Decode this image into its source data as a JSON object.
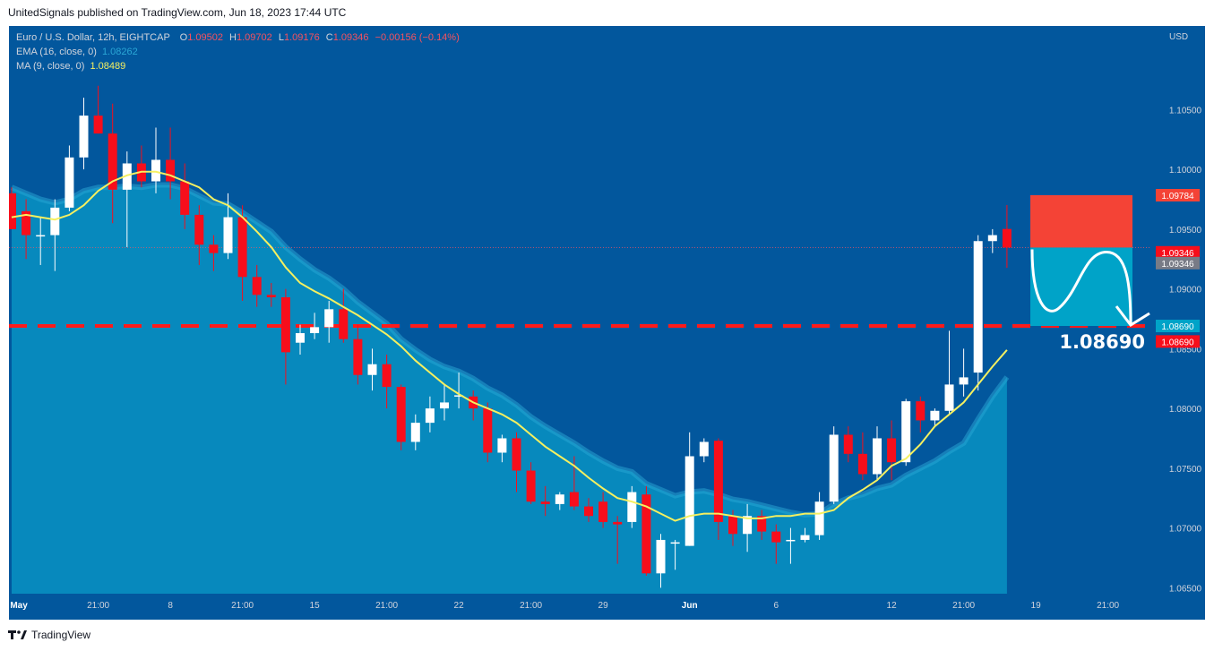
{
  "header": {
    "publisher": "UnitedSignals published on TradingView.com, Jun 18, 2023 17:44 UTC"
  },
  "legend": {
    "symbol": "Euro / U.S. Dollar, 12h, EIGHTCAP",
    "o_label": "O",
    "o": "1.09502",
    "h_label": "H",
    "h": "1.09702",
    "l_label": "L",
    "l": "1.09176",
    "c_label": "C",
    "c": "1.09346",
    "change": "−0.00156 (−0.14%)",
    "ema_label": "EMA (16, close, 0)",
    "ema_value": "1.08262",
    "ma_label": "MA (9, close, 0)",
    "ma_value": "1.08489"
  },
  "footer": {
    "brand": "TradingView"
  },
  "colors": {
    "background": "#02579d",
    "up": "#ffffff",
    "down": "#f70e1b",
    "ema_area": "#0789bd",
    "ema_line": "#2aa7d6",
    "ma_line": "#f5f060",
    "support": "#ff1a1a",
    "stop_zone": "#f44336",
    "target_zone": "#00a3c8"
  },
  "chart_data": {
    "type": "candlestick",
    "currency_label": "USD",
    "ylim": [
      1.0645,
      1.112
    ],
    "y_ticks": [
      "1.10500",
      "1.10000",
      "1.09500",
      "1.09000",
      "1.08500",
      "1.08000",
      "1.07500",
      "1.07000",
      "1.06500"
    ],
    "x_ticks": [
      {
        "label": "May",
        "bar": 0.5
      },
      {
        "label": "21:00",
        "bar": 6
      },
      {
        "label": "8",
        "bar": 11
      },
      {
        "label": "21:00",
        "bar": 16
      },
      {
        "label": "15",
        "bar": 21
      },
      {
        "label": "21:00",
        "bar": 26
      },
      {
        "label": "22",
        "bar": 31
      },
      {
        "label": "21:00",
        "bar": 36
      },
      {
        "label": "29",
        "bar": 41
      },
      {
        "label": "Jun",
        "bar": 47
      },
      {
        "label": "6",
        "bar": 53
      },
      {
        "label": "12",
        "bar": 61
      },
      {
        "label": "21:00",
        "bar": 66
      },
      {
        "label": "19",
        "bar": 71
      },
      {
        "label": "21:00",
        "bar": 76
      }
    ],
    "candles": [
      {
        "o": 1.098,
        "h": 1.0985,
        "l": 1.095,
        "c": 1.095
      },
      {
        "o": 1.0965,
        "h": 1.0975,
        "l": 1.0925,
        "c": 1.0945
      },
      {
        "o": 1.0945,
        "h": 1.096,
        "l": 1.092,
        "c": 1.0945
      },
      {
        "o": 1.0945,
        "h": 1.0975,
        "l": 1.0915,
        "c": 1.0968
      },
      {
        "o": 1.0968,
        "h": 1.102,
        "l": 1.0965,
        "c": 1.101
      },
      {
        "o": 1.101,
        "h": 1.106,
        "l": 1.1,
        "c": 1.1045
      },
      {
        "o": 1.1045,
        "h": 1.107,
        "l": 1.103,
        "c": 1.103
      },
      {
        "o": 1.103,
        "h": 1.1055,
        "l": 1.0955,
        "c": 1.0983
      },
      {
        "o": 1.0983,
        "h": 1.1015,
        "l": 1.0935,
        "c": 1.1005
      },
      {
        "o": 1.1005,
        "h": 1.102,
        "l": 1.0985,
        "c": 1.099
      },
      {
        "o": 1.099,
        "h": 1.1035,
        "l": 1.098,
        "c": 1.1008
      },
      {
        "o": 1.1008,
        "h": 1.1035,
        "l": 1.0975,
        "c": 1.099
      },
      {
        "o": 1.099,
        "h": 1.1005,
        "l": 1.095,
        "c": 1.0962
      },
      {
        "o": 1.0962,
        "h": 1.097,
        "l": 1.092,
        "c": 1.0937
      },
      {
        "o": 1.0937,
        "h": 1.0945,
        "l": 1.0915,
        "c": 1.093
      },
      {
        "o": 1.093,
        "h": 1.098,
        "l": 1.0925,
        "c": 1.096
      },
      {
        "o": 1.096,
        "h": 1.097,
        "l": 1.089,
        "c": 1.091
      },
      {
        "o": 1.091,
        "h": 1.092,
        "l": 1.0885,
        "c": 1.0895
      },
      {
        "o": 1.0895,
        "h": 1.0905,
        "l": 1.0885,
        "c": 1.0893
      },
      {
        "o": 1.0893,
        "h": 1.09,
        "l": 1.082,
        "c": 1.0847
      },
      {
        "o": 1.0855,
        "h": 1.087,
        "l": 1.0845,
        "c": 1.0863
      },
      {
        "o": 1.0863,
        "h": 1.088,
        "l": 1.0858,
        "c": 1.0868
      },
      {
        "o": 1.0868,
        "h": 1.089,
        "l": 1.0855,
        "c": 1.0883
      },
      {
        "o": 1.0883,
        "h": 1.09,
        "l": 1.0855,
        "c": 1.0858
      },
      {
        "o": 1.0858,
        "h": 1.087,
        "l": 1.082,
        "c": 1.0828
      },
      {
        "o": 1.0828,
        "h": 1.085,
        "l": 1.0815,
        "c": 1.0837
      },
      {
        "o": 1.0837,
        "h": 1.0845,
        "l": 1.08,
        "c": 1.0818
      },
      {
        "o": 1.0818,
        "h": 1.082,
        "l": 1.0765,
        "c": 1.0772
      },
      {
        "o": 1.0772,
        "h": 1.0795,
        "l": 1.0765,
        "c": 1.0788
      },
      {
        "o": 1.0788,
        "h": 1.081,
        "l": 1.078,
        "c": 1.08
      },
      {
        "o": 1.08,
        "h": 1.082,
        "l": 1.079,
        "c": 1.0805
      },
      {
        "o": 1.081,
        "h": 1.083,
        "l": 1.08,
        "c": 1.0811
      },
      {
        "o": 1.081,
        "h": 1.0815,
        "l": 1.079,
        "c": 1.08
      },
      {
        "o": 1.08,
        "h": 1.0805,
        "l": 1.0755,
        "c": 1.0763
      },
      {
        "o": 1.0763,
        "h": 1.0778,
        "l": 1.0755,
        "c": 1.0775
      },
      {
        "o": 1.0775,
        "h": 1.078,
        "l": 1.073,
        "c": 1.0748
      },
      {
        "o": 1.0748,
        "h": 1.0755,
        "l": 1.072,
        "c": 1.0722
      },
      {
        "o": 1.0722,
        "h": 1.0735,
        "l": 1.071,
        "c": 1.072
      },
      {
        "o": 1.072,
        "h": 1.073,
        "l": 1.0715,
        "c": 1.0728
      },
      {
        "o": 1.073,
        "h": 1.076,
        "l": 1.0715,
        "c": 1.0718
      },
      {
        "o": 1.0718,
        "h": 1.0725,
        "l": 1.0705,
        "c": 1.071
      },
      {
        "o": 1.0722,
        "h": 1.073,
        "l": 1.07,
        "c": 1.0705
      },
      {
        "o": 1.0705,
        "h": 1.071,
        "l": 1.067,
        "c": 1.0703
      },
      {
        "o": 1.0705,
        "h": 1.0735,
        "l": 1.07,
        "c": 1.073
      },
      {
        "o": 1.0728,
        "h": 1.0735,
        "l": 1.066,
        "c": 1.0662
      },
      {
        "o": 1.0662,
        "h": 1.0695,
        "l": 1.065,
        "c": 1.069
      },
      {
        "o": 1.0688,
        "h": 1.069,
        "l": 1.0665,
        "c": 1.0688
      },
      {
        "o": 1.0685,
        "h": 1.078,
        "l": 1.0685,
        "c": 1.076
      },
      {
        "o": 1.076,
        "h": 1.0775,
        "l": 1.0755,
        "c": 1.0772
      },
      {
        "o": 1.0773,
        "h": 1.0775,
        "l": 1.069,
        "c": 1.0705
      },
      {
        "o": 1.071,
        "h": 1.0715,
        "l": 1.0685,
        "c": 1.0695
      },
      {
        "o": 1.0695,
        "h": 1.072,
        "l": 1.068,
        "c": 1.071
      },
      {
        "o": 1.071,
        "h": 1.0715,
        "l": 1.069,
        "c": 1.0697
      },
      {
        "o": 1.0697,
        "h": 1.0703,
        "l": 1.067,
        "c": 1.0688
      },
      {
        "o": 1.069,
        "h": 1.07,
        "l": 1.067,
        "c": 1.069
      },
      {
        "o": 1.069,
        "h": 1.07,
        "l": 1.0688,
        "c": 1.0694
      },
      {
        "o": 1.0694,
        "h": 1.073,
        "l": 1.069,
        "c": 1.0722
      },
      {
        "o": 1.0722,
        "h": 1.0785,
        "l": 1.072,
        "c": 1.0778
      },
      {
        "o": 1.0778,
        "h": 1.0785,
        "l": 1.0755,
        "c": 1.0762
      },
      {
        "o": 1.0762,
        "h": 1.078,
        "l": 1.074,
        "c": 1.0745
      },
      {
        "o": 1.0745,
        "h": 1.0785,
        "l": 1.074,
        "c": 1.0775
      },
      {
        "o": 1.0775,
        "h": 1.079,
        "l": 1.074,
        "c": 1.0755
      },
      {
        "o": 1.0755,
        "h": 1.0808,
        "l": 1.0752,
        "c": 1.0806
      },
      {
        "o": 1.0806,
        "h": 1.081,
        "l": 1.078,
        "c": 1.079
      },
      {
        "o": 1.079,
        "h": 1.08,
        "l": 1.0785,
        "c": 1.0798
      },
      {
        "o": 1.0798,
        "h": 1.0865,
        "l": 1.0795,
        "c": 1.082
      },
      {
        "o": 1.082,
        "h": 1.085,
        "l": 1.081,
        "c": 1.0826
      },
      {
        "o": 1.083,
        "h": 1.0945,
        "l": 1.0815,
        "c": 1.094
      },
      {
        "o": 1.094,
        "h": 1.095,
        "l": 1.093,
        "c": 1.0945
      },
      {
        "o": 1.09502,
        "h": 1.09702,
        "l": 1.09176,
        "c": 1.09346
      }
    ],
    "ema": [
      1.0985,
      1.098,
      1.0975,
      1.0972,
      1.0975,
      1.0982,
      1.0985,
      1.0985,
      1.0986,
      1.0985,
      1.0987,
      1.0987,
      1.0984,
      1.0978,
      1.0972,
      1.0971,
      1.0964,
      1.0956,
      1.0948,
      1.0935,
      1.0925,
      1.0916,
      1.0909,
      1.09,
      1.0889,
      1.088,
      1.0871,
      1.0858,
      1.0849,
      1.0841,
      1.0835,
      1.0831,
      1.0825,
      1.0817,
      1.0811,
      1.0803,
      1.0793,
      1.0785,
      1.0778,
      1.0771,
      1.0763,
      1.0756,
      1.075,
      1.0747,
      1.0737,
      1.0732,
      1.0727,
      1.073,
      1.0731,
      1.0728,
      1.0724,
      1.0722,
      1.0719,
      1.0716,
      1.0713,
      1.0711,
      1.0712,
      1.072,
      1.0725,
      1.0728,
      1.0733,
      1.0736,
      1.0744,
      1.075,
      1.0756,
      1.0764,
      1.0771,
      1.0791,
      1.081,
      1.08262
    ],
    "ma": [
      1.096,
      1.0962,
      1.096,
      1.0958,
      1.0962,
      1.097,
      1.0982,
      1.099,
      1.0995,
      1.0998,
      1.0998,
      1.0995,
      1.099,
      1.0985,
      1.0975,
      1.097,
      1.096,
      1.0948,
      1.0935,
      1.0918,
      1.0905,
      1.0898,
      1.0892,
      1.0885,
      1.0878,
      1.087,
      1.0862,
      1.0852,
      1.084,
      1.083,
      1.082,
      1.0812,
      1.0805,
      1.08,
      1.0795,
      1.0788,
      1.0778,
      1.0768,
      1.076,
      1.0752,
      1.0742,
      1.0733,
      1.0725,
      1.0722,
      1.0718,
      1.0712,
      1.0706,
      1.071,
      1.0712,
      1.0712,
      1.071,
      1.0708,
      1.0708,
      1.071,
      1.071,
      1.0712,
      1.0712,
      1.0715,
      1.0725,
      1.0732,
      1.074,
      1.0752,
      1.0758,
      1.077,
      1.0785,
      1.0795,
      1.0805,
      1.082,
      1.0835,
      1.08489
    ],
    "support_level": 1.0869,
    "last_close": 1.09346,
    "trade_zones": {
      "stop_top": 1.09784,
      "entry": 1.09346,
      "target": 1.0869
    },
    "price_labels": {
      "stop": "1.09784",
      "last_red": "1.09346",
      "last_gray": "1.09346",
      "target_blue": "1.08690",
      "target_red": "1.08690"
    },
    "target_annotation": "1.08690"
  }
}
